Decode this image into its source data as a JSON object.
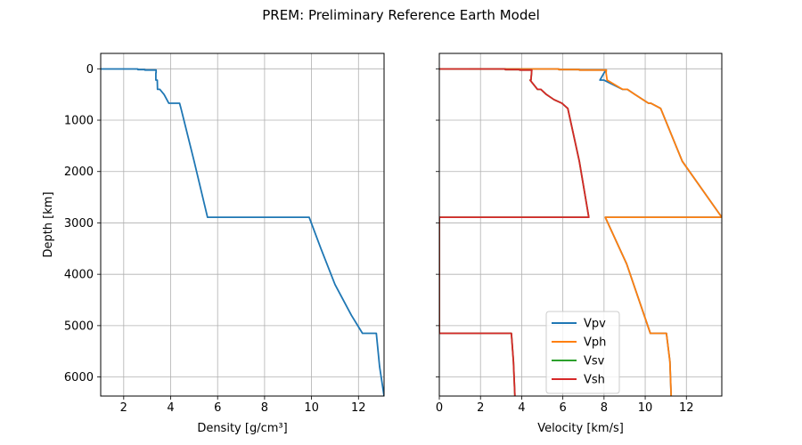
{
  "figure": {
    "title": "PREM: Preliminary Reference Earth Model"
  },
  "colors": {
    "Vpv": "#1f77b4",
    "Vph": "#ff7f0e",
    "Vsv": "#2ca02c",
    "Vsh": "#d62728",
    "density": "#1f77b4"
  },
  "chart_data": [
    {
      "type": "line",
      "xlabel": "Density [g/cm³]",
      "ylabel": "Depth [km]",
      "xlim": [
        1.02,
        13.09
      ],
      "ylim": [
        6371,
        -300
      ],
      "y_inverted": true,
      "grid": true,
      "xticks": [
        2,
        4,
        6,
        8,
        10,
        12
      ],
      "yticks": [
        0,
        1000,
        2000,
        3000,
        4000,
        5000,
        6000
      ],
      "series": [
        {
          "key": "density",
          "x": [
            1.02,
            1.02,
            2.6,
            2.6,
            2.9,
            2.9,
            3.38,
            3.38,
            3.37,
            3.37,
            3.43,
            3.44,
            3.54,
            3.72,
            3.92,
            3.98,
            4.38,
            4.44,
            5.0,
            5.57,
            9.9,
            10.4,
            11.0,
            11.7,
            12.17,
            12.76,
            12.9,
            13.09
          ],
          "y": [
            0,
            3,
            3,
            15,
            15,
            24,
            24,
            80,
            80,
            220,
            220,
            400,
            400,
            500,
            670,
            670,
            670,
            771,
            1800,
            2891,
            2891,
            3500,
            4200,
            4800,
            5150,
            5150,
            5800,
            6371
          ]
        }
      ]
    },
    {
      "type": "line",
      "xlabel": "Velocity [km/s]",
      "ylabel": "",
      "xlim": [
        0,
        13.72
      ],
      "ylim": [
        6371,
        -300
      ],
      "y_inverted": true,
      "grid": true,
      "legend_position": "lower-center",
      "xticks": [
        0,
        2,
        4,
        6,
        8,
        10,
        12
      ],
      "yticks": [
        0,
        1000,
        2000,
        3000,
        4000,
        5000,
        6000
      ],
      "series": [
        {
          "name": "Vpv",
          "x": [
            1.45,
            1.45,
            5.8,
            5.8,
            6.8,
            6.8,
            8.11,
            8.0,
            7.8,
            8.0,
            8.9,
            9.13,
            9.5,
            10.16,
            10.27,
            10.75,
            11.8,
            13.72,
            13.72,
            8.06,
            9.1,
            10.25,
            10.36,
            11.03,
            11.2,
            11.26
          ],
          "y": [
            0,
            3,
            3,
            15,
            15,
            24,
            24,
            80,
            220,
            220,
            400,
            400,
            500,
            670,
            670,
            771,
            1800,
            2891,
            2891,
            2891,
            3800,
            5150,
            5150,
            5150,
            5700,
            6371
          ]
        },
        {
          "name": "Vph",
          "x": [
            1.45,
            1.45,
            5.8,
            5.8,
            6.8,
            6.8,
            8.11,
            8.1,
            8.15,
            8.9,
            9.13,
            9.5,
            10.16,
            10.27,
            10.75,
            11.8,
            13.72,
            13.72,
            8.06,
            9.1,
            10.25,
            10.36,
            11.03,
            11.2,
            11.26
          ],
          "y": [
            0,
            3,
            3,
            15,
            15,
            24,
            24,
            80,
            220,
            400,
            400,
            500,
            670,
            670,
            771,
            1800,
            2891,
            2891,
            2891,
            3800,
            5150,
            5150,
            5150,
            5700,
            6371
          ]
        },
        {
          "name": "Vsv",
          "x": [
            0,
            0,
            3.2,
            3.2,
            3.9,
            3.9,
            4.49,
            4.48,
            4.45,
            4.41,
            4.77,
            4.93,
            5.2,
            5.57,
            5.95,
            6.24,
            6.8,
            7.26,
            7.26,
            0,
            0,
            3.5,
            3.6,
            3.67
          ],
          "y": [
            0,
            3,
            3,
            15,
            15,
            24,
            24,
            80,
            220,
            220,
            400,
            400,
            500,
            600,
            670,
            771,
            1800,
            2891,
            2891,
            2891,
            5150,
            5150,
            5700,
            6371
          ]
        },
        {
          "name": "Vsh",
          "x": [
            0,
            0,
            3.2,
            3.2,
            3.9,
            3.9,
            4.49,
            4.48,
            4.45,
            4.41,
            4.77,
            4.93,
            5.2,
            5.57,
            5.95,
            6.24,
            6.8,
            7.26,
            7.26,
            0,
            0,
            3.5,
            3.6,
            3.67
          ],
          "y": [
            0,
            3,
            3,
            15,
            15,
            24,
            24,
            80,
            220,
            220,
            400,
            400,
            500,
            600,
            670,
            771,
            1800,
            2891,
            2891,
            2891,
            5150,
            5150,
            5700,
            6371
          ]
        }
      ]
    }
  ]
}
